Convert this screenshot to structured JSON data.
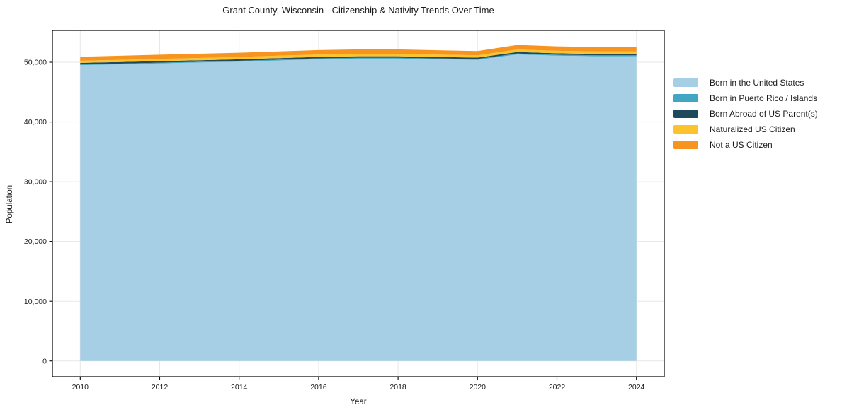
{
  "title": "Grant County, Wisconsin - Citizenship & Nativity Trends Over Time",
  "axes": {
    "xlabel": "Year",
    "ylabel": "Population"
  },
  "colors": {
    "grid": "#e7e7e7",
    "spine": "#000000",
    "text": "#1a1a1a",
    "background": "#ffffff"
  },
  "chart_data": {
    "type": "area",
    "stacked": true,
    "title": "Grant County, Wisconsin - Citizenship & Nativity Trends Over Time",
    "xlabel": "Year",
    "ylabel": "Population",
    "grid": true,
    "legend_position": "right-outside",
    "x": [
      2010,
      2011,
      2012,
      2013,
      2014,
      2015,
      2016,
      2017,
      2018,
      2019,
      2020,
      2021,
      2022,
      2023,
      2024
    ],
    "xticks": [
      2010,
      2012,
      2014,
      2016,
      2018,
      2020,
      2022,
      2024
    ],
    "xtick_labels": [
      "2010",
      "2012",
      "2014",
      "2016",
      "2018",
      "2020",
      "2022",
      "2024"
    ],
    "yticks": [
      0,
      10000,
      20000,
      30000,
      40000,
      50000
    ],
    "ytick_labels": [
      "0",
      "10,000",
      "20,000",
      "30,000",
      "40,000",
      "50,000"
    ],
    "xlim": [
      2009.3,
      2024.7
    ],
    "ylim": [
      -2634,
      55324
    ],
    "series": [
      {
        "name": "Born in the United States",
        "color": "#a6cfe5",
        "values": [
          49500,
          49650,
          49800,
          49950,
          50100,
          50300,
          50500,
          50600,
          50600,
          50500,
          50400,
          51300,
          51100,
          51000,
          51000
        ]
      },
      {
        "name": "Born in Puerto Rico / Islands",
        "color": "#41a6c4",
        "values": [
          120,
          120,
          130,
          130,
          140,
          140,
          150,
          150,
          150,
          140,
          140,
          160,
          150,
          150,
          150
        ]
      },
      {
        "name": "Born Abroad of US Parent(s)",
        "color": "#1f4a5c",
        "values": [
          270,
          265,
          260,
          255,
          250,
          245,
          240,
          240,
          240,
          235,
          230,
          250,
          245,
          240,
          240
        ]
      },
      {
        "name": "Naturalized US Citizen",
        "color": "#fcc32d",
        "values": [
          350,
          360,
          370,
          380,
          390,
          400,
          400,
          410,
          410,
          400,
          390,
          420,
          410,
          410,
          410
        ]
      },
      {
        "name": "Not a US Citizen",
        "color": "#f7941f",
        "values": [
          670,
          680,
          690,
          700,
          710,
          720,
          730,
          740,
          740,
          720,
          700,
          760,
          740,
          735,
          740
        ]
      }
    ]
  }
}
